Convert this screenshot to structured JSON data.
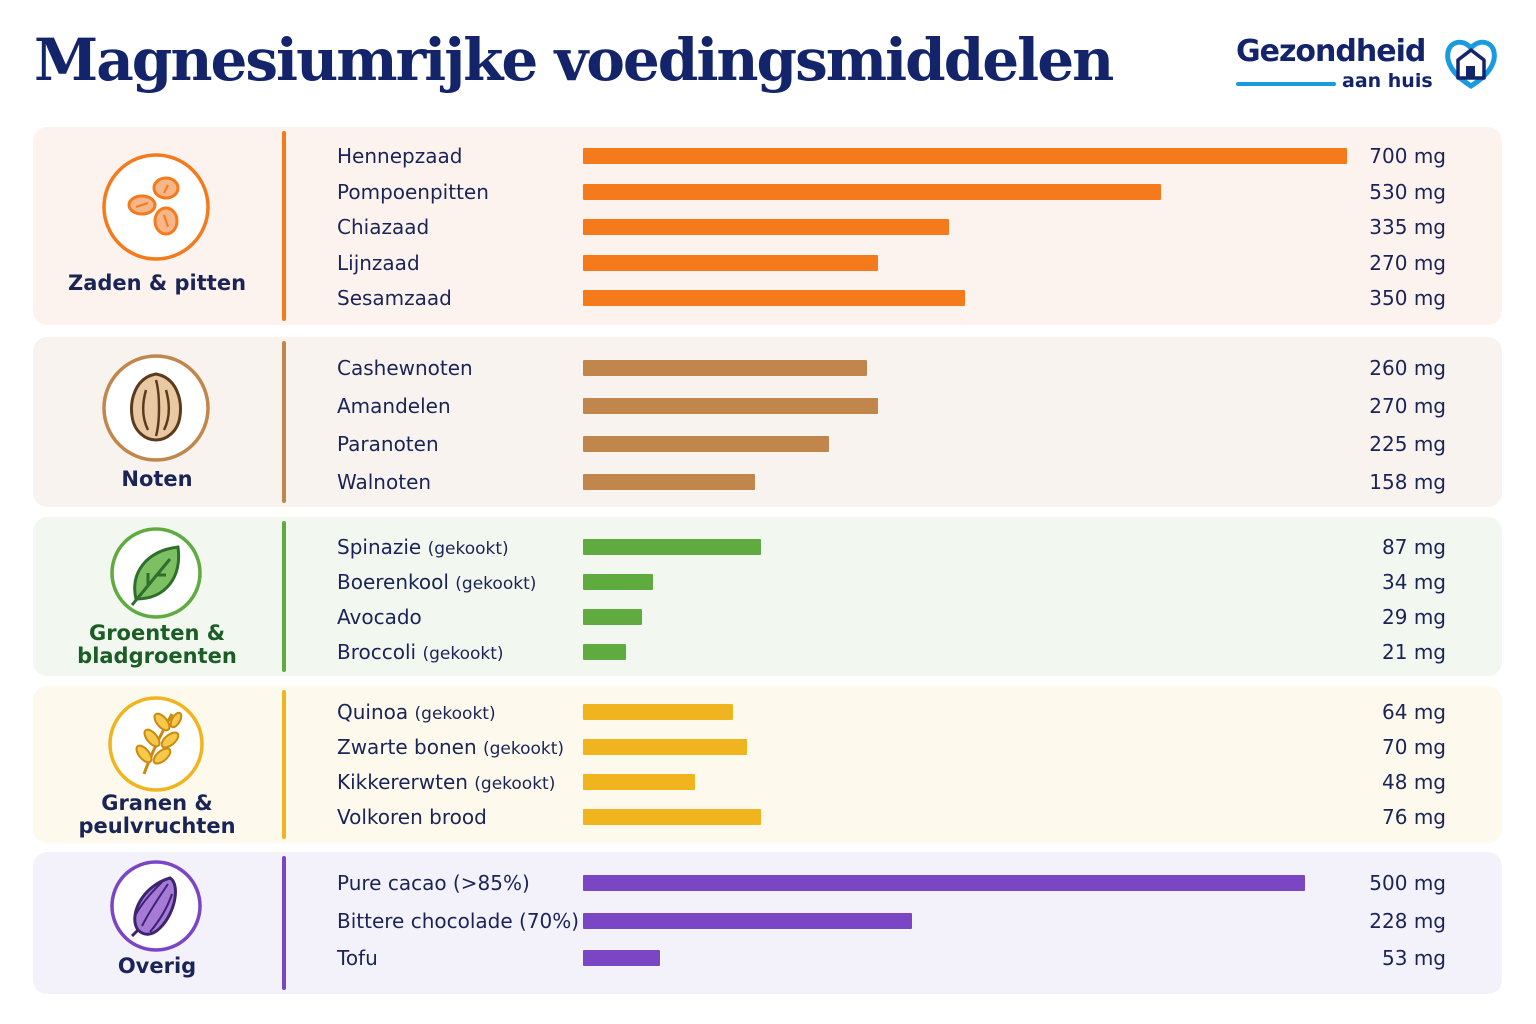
{
  "title": "Magnesiumrijke voedingsmiddelen",
  "logo": {
    "line1": "Gezondheid",
    "line2": "aan huis"
  },
  "chart_data": {
    "type": "bar",
    "orientation": "horizontal",
    "unit": "mg",
    "groups": [
      {
        "name": "Zaden & pitten",
        "icon": "seeds-icon",
        "color": "#f47a1b",
        "bg": "#fdf3ee",
        "items": [
          {
            "name": "Hennepzaad",
            "qualifier": "",
            "value": 700,
            "label": "700 mg"
          },
          {
            "name": "Pompoenpitten",
            "qualifier": "",
            "value": 530,
            "label": "530 mg"
          },
          {
            "name": "Chiazaad",
            "qualifier": "",
            "value": 335,
            "label": "335 mg"
          },
          {
            "name": "Lijnzaad",
            "qualifier": "",
            "value": 270,
            "label": "270 mg"
          },
          {
            "name": "Sesamzaad",
            "qualifier": "",
            "value": 350,
            "label": "350 mg"
          }
        ]
      },
      {
        "name": "Noten",
        "icon": "nut-icon",
        "color": "#c0864c",
        "bg": "#f8f3ef",
        "items": [
          {
            "name": "Cashewnoten",
            "qualifier": "",
            "value": 260,
            "label": "260 mg"
          },
          {
            "name": "Amandelen",
            "qualifier": "",
            "value": 270,
            "label": "270 mg"
          },
          {
            "name": "Paranoten",
            "qualifier": "",
            "value": 225,
            "label": "225 mg"
          },
          {
            "name": "Walnoten",
            "qualifier": "",
            "value": 158,
            "label": "158 mg"
          }
        ]
      },
      {
        "name": "Groenten &\nbladgroenten",
        "icon": "leaf-icon",
        "color": "#5fab3f",
        "bg": "#f2f7f0",
        "items": [
          {
            "name": "Spinazie",
            "qualifier": "(gekookt)",
            "value": 87,
            "label": "87 mg"
          },
          {
            "name": "Boerenkool",
            "qualifier": "(gekookt)",
            "value": 34,
            "label": "34 mg"
          },
          {
            "name": "Avocado",
            "qualifier": "",
            "value": 29,
            "label": "29 mg"
          },
          {
            "name": "Broccoli",
            "qualifier": "(gekookt)",
            "value": 21,
            "label": "21 mg"
          }
        ]
      },
      {
        "name": "Granen &\npeulvruchten",
        "icon": "wheat-icon",
        "color": "#f0b41e",
        "bg": "#fdf9ec",
        "items": [
          {
            "name": "Quinoa",
            "qualifier": "(gekookt)",
            "value": 64,
            "label": "64 mg"
          },
          {
            "name": "Zwarte bonen",
            "qualifier": "(gekookt)",
            "value": 70,
            "label": "70 mg"
          },
          {
            "name": "Kikkererwten",
            "qualifier": "(gekookt)",
            "value": 48,
            "label": "48 mg"
          },
          {
            "name": "Volkoren brood",
            "qualifier": "",
            "value": 76,
            "label": "76 mg"
          }
        ]
      },
      {
        "name": "Overig",
        "icon": "cacao-icon",
        "color": "#7a46c4",
        "bg": "#f3f1fa",
        "items": [
          {
            "name": "Pure cacao (>85%)",
            "qualifier": "",
            "value": 500,
            "label": "500 mg"
          },
          {
            "name": "Bittere chocolade (70%)",
            "qualifier": "",
            "value": 228,
            "label": "228 mg"
          },
          {
            "name": "Tofu",
            "qualifier": "",
            "value": 53,
            "label": "53 mg"
          }
        ]
      }
    ]
  }
}
